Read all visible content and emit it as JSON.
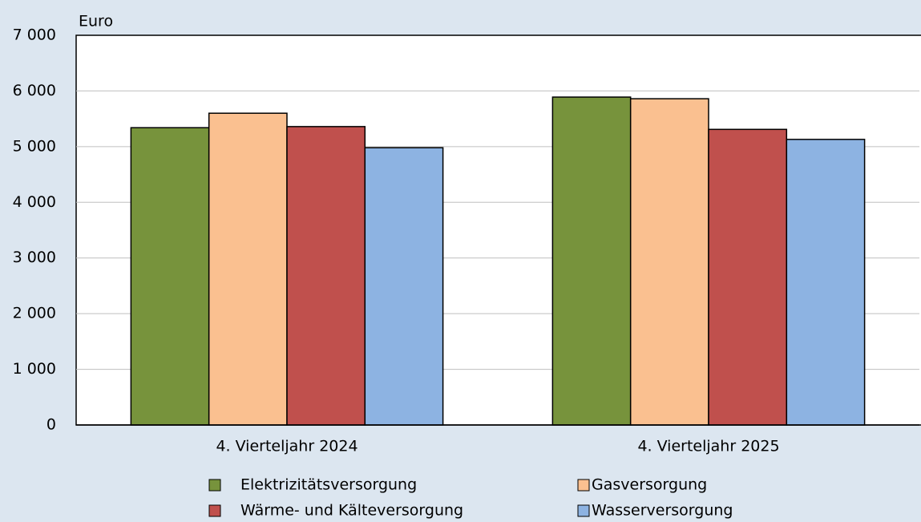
{
  "chart_data": {
    "type": "bar",
    "y_axis_label": "Euro",
    "categories": [
      "4. Vierteljahr 2024",
      "4. Vierteljahr 2025"
    ],
    "series": [
      {
        "name": "Elektrizitätsversorgung",
        "color": "#77933c",
        "values": [
          5340,
          5890
        ]
      },
      {
        "name": "Gasversorgung",
        "color": "#fac090",
        "values": [
          5600,
          5860
        ]
      },
      {
        "name": "Wärme- und Kälteversorgung",
        "color": "#c0504d",
        "values": [
          5360,
          5310
        ]
      },
      {
        "name": "Wasserversorgung",
        "color": "#8db3e2",
        "values": [
          4980,
          5130
        ]
      }
    ],
    "ylim": [
      0,
      7000
    ],
    "yticks": [
      0,
      {
        "value": 1000,
        "label": "1 000"
      },
      {
        "value": 2000,
        "label": "2 000"
      },
      {
        "value": 3000,
        "label": "3 000"
      },
      {
        "value": 4000,
        "label": "4 000"
      },
      {
        "value": 5000,
        "label": "5 000"
      },
      {
        "value": 6000,
        "label": "6 000"
      },
      {
        "value": 7000,
        "label": "7 000"
      }
    ],
    "grid": true,
    "legend": "bottom"
  }
}
